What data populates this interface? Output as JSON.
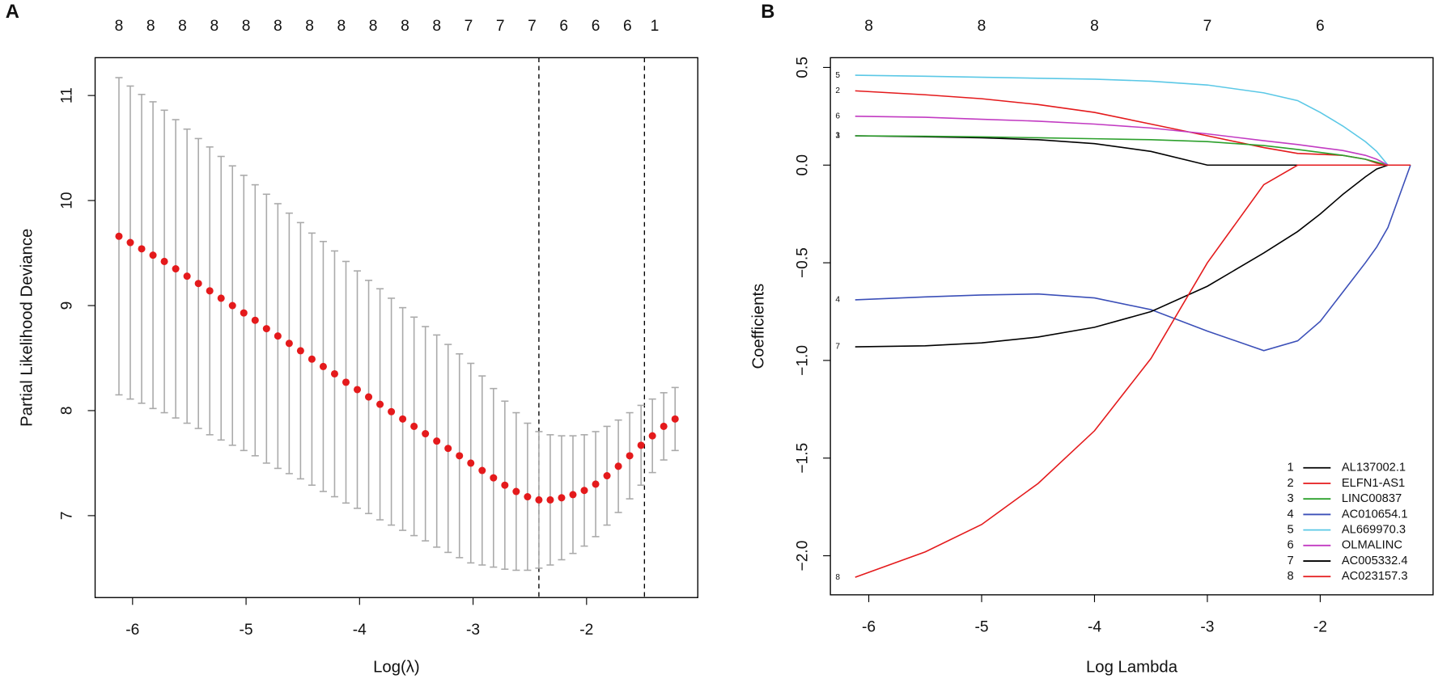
{
  "chart_data": [
    {
      "type": "errorbar",
      "panel": "A",
      "xlabel": "Log(λ)",
      "ylabel": "Partial Likelihood Deviance",
      "color": "#e41a1c",
      "error_color": "#aaaaaa",
      "xlim": [
        -6.33,
        -1.02
      ],
      "ylim": [
        6.22,
        11.36
      ],
      "xticks": [
        -6,
        -5,
        -4,
        -3,
        -2
      ],
      "yticks": [
        7,
        8,
        9,
        10,
        11
      ],
      "top_ticks": [
        {
          "value": -6.12,
          "label": "8"
        },
        {
          "value": -5.84,
          "label": "8"
        },
        {
          "value": -5.56,
          "label": "8"
        },
        {
          "value": -5.28,
          "label": "8"
        },
        {
          "value": -5.0,
          "label": "8"
        },
        {
          "value": -4.72,
          "label": "8"
        },
        {
          "value": -4.44,
          "label": "8"
        },
        {
          "value": -4.16,
          "label": "8"
        },
        {
          "value": -3.88,
          "label": "8"
        },
        {
          "value": -3.6,
          "label": "8"
        },
        {
          "value": -3.32,
          "label": "8"
        },
        {
          "value": -3.04,
          "label": "7"
        },
        {
          "value": -2.76,
          "label": "7"
        },
        {
          "value": -2.48,
          "label": "7"
        },
        {
          "value": -2.2,
          "label": "6"
        },
        {
          "value": -1.92,
          "label": "6"
        },
        {
          "value": -1.64,
          "label": "6"
        },
        {
          "value": -1.4,
          "label": "1"
        }
      ],
      "vlines": [
        -2.42,
        -1.49
      ],
      "x": [
        -6.12,
        -6.02,
        -5.92,
        -5.82,
        -5.72,
        -5.62,
        -5.52,
        -5.42,
        -5.32,
        -5.22,
        -5.12,
        -5.02,
        -4.92,
        -4.82,
        -4.72,
        -4.62,
        -4.52,
        -4.42,
        -4.32,
        -4.22,
        -4.12,
        -4.02,
        -3.92,
        -3.82,
        -3.72,
        -3.62,
        -3.52,
        -3.42,
        -3.32,
        -3.22,
        -3.12,
        -3.02,
        -2.92,
        -2.82,
        -2.72,
        -2.62,
        -2.52,
        -2.42,
        -2.32,
        -2.22,
        -2.12,
        -2.02,
        -1.92,
        -1.82,
        -1.72,
        -1.62,
        -1.52,
        -1.42,
        -1.32,
        -1.22
      ],
      "values": [
        9.66,
        9.6,
        9.54,
        9.48,
        9.42,
        9.35,
        9.28,
        9.21,
        9.14,
        9.07,
        9.0,
        8.93,
        8.86,
        8.78,
        8.71,
        8.64,
        8.57,
        8.49,
        8.42,
        8.35,
        8.27,
        8.2,
        8.13,
        8.06,
        7.99,
        7.92,
        7.85,
        7.78,
        7.71,
        7.64,
        7.57,
        7.5,
        7.43,
        7.36,
        7.29,
        7.23,
        7.18,
        7.15,
        7.15,
        7.17,
        7.2,
        7.24,
        7.3,
        7.38,
        7.47,
        7.57,
        7.67,
        7.76,
        7.85,
        7.92
      ],
      "errors": [
        1.51,
        1.49,
        1.47,
        1.46,
        1.44,
        1.42,
        1.4,
        1.38,
        1.37,
        1.35,
        1.33,
        1.31,
        1.29,
        1.28,
        1.26,
        1.24,
        1.22,
        1.2,
        1.19,
        1.17,
        1.15,
        1.13,
        1.11,
        1.1,
        1.08,
        1.06,
        1.04,
        1.02,
        1.01,
        0.99,
        0.97,
        0.95,
        0.9,
        0.85,
        0.8,
        0.75,
        0.7,
        0.65,
        0.62,
        0.59,
        0.56,
        0.53,
        0.5,
        0.47,
        0.44,
        0.41,
        0.38,
        0.35,
        0.32,
        0.3
      ]
    },
    {
      "type": "line",
      "panel": "B",
      "xlabel": "Log Lambda",
      "ylabel": "Coefficients",
      "xlim": [
        -6.34,
        -1.0
      ],
      "ylim": [
        -2.2,
        0.55
      ],
      "xticks": [
        -6,
        -5,
        -4,
        -3,
        -2
      ],
      "yticks": [
        {
          "value": -2.0,
          "label": "−2.0"
        },
        {
          "value": -1.5,
          "label": "−1.5"
        },
        {
          "value": -1.0,
          "label": "−1.0"
        },
        {
          "value": -0.5,
          "label": "−0.5"
        },
        {
          "value": 0,
          "label": "0.0"
        },
        {
          "value": 0.5,
          "label": "0.5"
        }
      ],
      "top_ticks": [
        {
          "value": -6,
          "label": "8"
        },
        {
          "value": -5,
          "label": "8"
        },
        {
          "value": -4,
          "label": "8"
        },
        {
          "value": -3,
          "label": "7"
        },
        {
          "value": -2,
          "label": "6"
        }
      ],
      "legend": "bottom-right",
      "x": [
        -6.12,
        -5.5,
        -5,
        -4.5,
        -4,
        -3.5,
        -3,
        -2.5,
        -2.2,
        -2,
        -1.8,
        -1.6,
        -1.5,
        -1.4,
        -1.2
      ],
      "series": [
        {
          "label": "1",
          "name": "AL137002.1",
          "color": "#000000",
          "values": [
            0.15,
            0.145,
            0.14,
            0.13,
            0.11,
            0.07,
            0,
            0,
            0,
            0,
            0,
            0,
            0,
            0,
            0
          ]
        },
        {
          "label": "2",
          "name": "ELFN1-AS1",
          "color": "#e41a1c",
          "values": [
            0.38,
            0.36,
            0.34,
            0.31,
            0.27,
            0.21,
            0.15,
            0.09,
            0.06,
            0.055,
            0.05,
            0.03,
            0.01,
            0,
            0
          ]
        },
        {
          "label": "3",
          "name": "LINC00837",
          "color": "#2ca02c",
          "values": [
            0.15,
            0.148,
            0.145,
            0.14,
            0.135,
            0.13,
            0.12,
            0.1,
            0.08,
            0.065,
            0.05,
            0.03,
            0.015,
            0,
            0
          ]
        },
        {
          "label": "4",
          "name": "AC010654.1",
          "color": "#3b4fb8",
          "values": [
            -0.69,
            -0.675,
            -0.665,
            -0.66,
            -0.68,
            -0.74,
            -0.85,
            -0.95,
            -0.9,
            -0.8,
            -0.65,
            -0.5,
            -0.42,
            -0.32,
            0
          ]
        },
        {
          "label": "5",
          "name": "AL669970.3",
          "color": "#5bc8e6",
          "values": [
            0.46,
            0.455,
            0.45,
            0.445,
            0.44,
            0.43,
            0.41,
            0.37,
            0.33,
            0.27,
            0.2,
            0.12,
            0.07,
            0,
            0
          ]
        },
        {
          "label": "6",
          "name": "OLMALINC",
          "color": "#c23bc2",
          "values": [
            0.25,
            0.245,
            0.235,
            0.225,
            0.21,
            0.19,
            0.16,
            0.125,
            0.105,
            0.09,
            0.075,
            0.05,
            0.03,
            0,
            0
          ]
        },
        {
          "label": "7",
          "name": "AC005332.4",
          "color": "#000000",
          "values": [
            -0.93,
            -0.925,
            -0.91,
            -0.88,
            -0.83,
            -0.75,
            -0.62,
            -0.45,
            -0.34,
            -0.25,
            -0.15,
            -0.06,
            -0.02,
            0,
            0
          ]
        },
        {
          "label": "8",
          "name": "AC023157.3",
          "color": "#e41a1c",
          "values": [
            -2.11,
            -1.98,
            -1.84,
            -1.63,
            -1.36,
            -0.99,
            -0.5,
            -0.1,
            0,
            0,
            0,
            0,
            0,
            0,
            0
          ]
        }
      ]
    }
  ]
}
